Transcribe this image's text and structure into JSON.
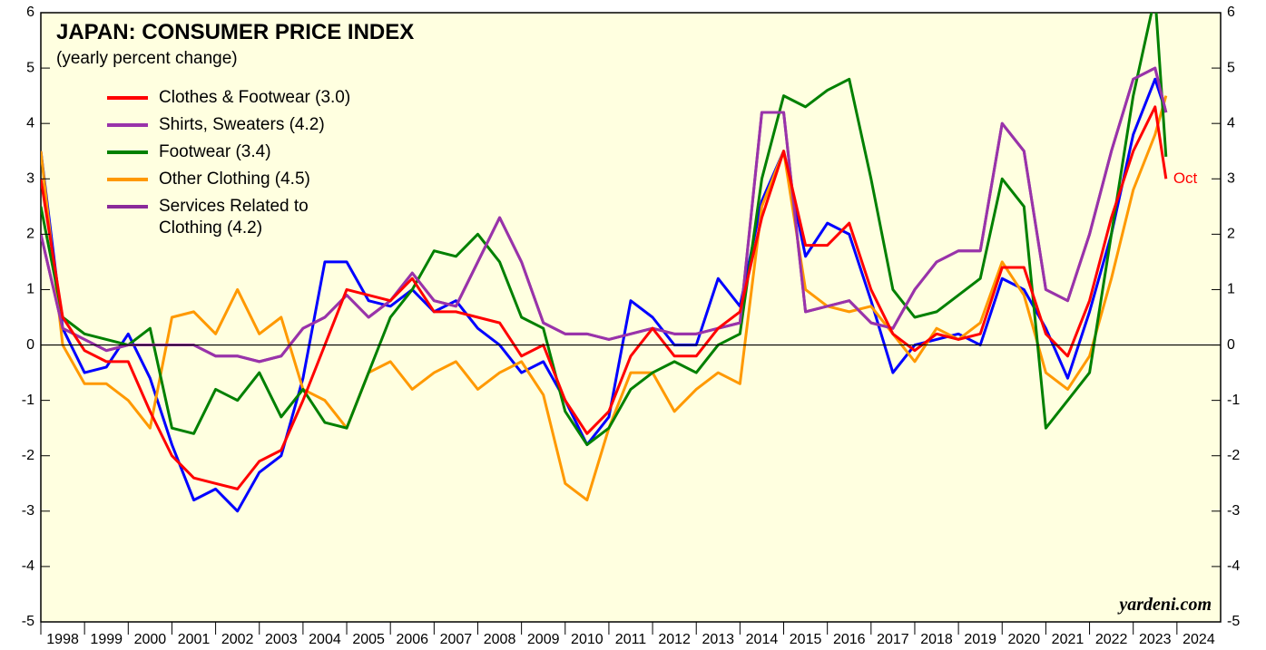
{
  "chart_data": {
    "type": "line",
    "title": "JAPAN: CONSUMER PRICE INDEX",
    "subtitle": "(yearly percent change)",
    "annotations": [
      "Oct",
      "yardeni.com"
    ],
    "x": [
      1998,
      1998.5,
      1999,
      1999.5,
      2000,
      2000.5,
      2001,
      2001.5,
      2002,
      2002.5,
      2003,
      2003.5,
      2004,
      2004.5,
      2005,
      2005.5,
      2006,
      2006.5,
      2007,
      2007.5,
      2008,
      2008.5,
      2009,
      2009.5,
      2010,
      2010.5,
      2011,
      2011.5,
      2012,
      2012.5,
      2013,
      2013.5,
      2014,
      2014.5,
      2015,
      2015.5,
      2016,
      2016.5,
      2017,
      2017.5,
      2018,
      2018.5,
      2019,
      2019.5,
      2020,
      2020.5,
      2021,
      2021.5,
      2022,
      2022.5,
      2023,
      2023.5,
      2023.75
    ],
    "xlim": [
      1998,
      2025
    ],
    "xticks": [
      1998,
      1999,
      2000,
      2001,
      2002,
      2003,
      2004,
      2005,
      2006,
      2007,
      2008,
      2009,
      2010,
      2011,
      2012,
      2013,
      2014,
      2015,
      2016,
      2017,
      2018,
      2019,
      2020,
      2021,
      2022,
      2023,
      2024
    ],
    "ylim": [
      -5,
      6
    ],
    "yticks": [
      -5,
      -4,
      -3,
      -2,
      -1,
      0,
      1,
      2,
      3,
      4,
      5,
      6
    ],
    "series": [
      {
        "color": "#0000ff",
        "values": [
          3.5,
          0.3,
          -0.5,
          -0.4,
          0.2,
          -0.6,
          -1.8,
          -2.8,
          -2.6,
          -3.0,
          -2.3,
          -2.0,
          -0.6,
          1.5,
          1.5,
          0.8,
          0.7,
          1.0,
          0.6,
          0.8,
          0.3,
          0.0,
          -0.5,
          -0.3,
          -1.0,
          -1.8,
          -1.3,
          0.8,
          0.5,
          0.0,
          0.0,
          1.2,
          0.7,
          2.6,
          3.5,
          1.6,
          2.2,
          2.0,
          0.8,
          -0.5,
          0.0,
          0.1,
          0.2,
          0.0,
          1.2,
          1.0,
          0.3,
          -0.6,
          0.6,
          2.0,
          3.8,
          4.8,
          4.2
        ]
      },
      {
        "name": "Services Related to Clothing (4.2)",
        "color": "#8a2a9a",
        "values": [
          2.0,
          0.3,
          0.1,
          -0.1,
          0.0,
          0.0,
          0.0,
          0.0,
          -0.2,
          -0.2,
          -0.3,
          -0.2,
          0.3,
          0.5,
          0.9,
          0.5,
          0.8,
          1.3,
          0.8,
          0.7,
          1.5,
          2.3,
          1.5,
          0.4,
          0.2,
          0.2,
          0.1,
          0.2,
          0.3,
          0.2,
          0.2,
          0.3,
          0.4,
          4.2,
          4.2,
          0.6,
          0.7,
          0.8,
          0.4,
          0.3,
          1.0,
          1.5,
          1.7,
          1.7,
          4.0,
          3.5,
          1.0,
          0.8,
          2.0,
          3.5,
          4.8,
          5.0,
          4.2
        ]
      },
      {
        "name": "Other Clothing (4.5)",
        "color": "#ff9900",
        "values": [
          3.5,
          0.0,
          -0.7,
          -0.7,
          -1.0,
          -1.5,
          0.5,
          0.6,
          0.2,
          1.0,
          0.2,
          0.5,
          -0.8,
          -1.0,
          -1.5,
          -0.5,
          -0.3,
          -0.8,
          -0.5,
          -0.3,
          -0.8,
          -0.5,
          -0.3,
          -0.9,
          -2.5,
          -2.8,
          -1.5,
          -0.5,
          -0.5,
          -1.2,
          -0.8,
          -0.5,
          -0.7,
          2.5,
          3.5,
          1.0,
          0.7,
          0.6,
          0.7,
          0.2,
          -0.3,
          0.3,
          0.1,
          0.4,
          1.5,
          0.9,
          -0.5,
          -0.8,
          -0.2,
          1.2,
          2.8,
          3.8,
          4.5
        ]
      },
      {
        "name": "Footwear (3.4)",
        "color": "#008000",
        "values": [
          2.5,
          0.5,
          0.2,
          0.1,
          0.0,
          0.3,
          -1.5,
          -1.6,
          -0.8,
          -1.0,
          -0.5,
          -1.3,
          -0.8,
          -1.4,
          -1.5,
          -0.5,
          0.5,
          1.0,
          1.7,
          1.6,
          2.0,
          1.5,
          0.5,
          0.3,
          -1.2,
          -1.8,
          -1.5,
          -0.8,
          -0.5,
          -0.3,
          -0.5,
          0.0,
          0.2,
          3.0,
          4.5,
          4.3,
          4.6,
          4.8,
          3.0,
          1.0,
          0.5,
          0.6,
          0.9,
          1.2,
          3.0,
          2.5,
          -1.5,
          -1.0,
          -0.5,
          2.0,
          4.5,
          6.3,
          3.4
        ]
      },
      {
        "name": "Shirts, Sweaters (4.2)",
        "color": "#9933aa",
        "values": [
          2.0,
          0.3,
          0.1,
          -0.1,
          0.0,
          0.0,
          0.0,
          0.0,
          -0.2,
          -0.2,
          -0.3,
          -0.2,
          0.3,
          0.5,
          0.9,
          0.5,
          0.8,
          1.3,
          0.8,
          0.7,
          1.5,
          2.3,
          1.5,
          0.4,
          0.2,
          0.2,
          0.1,
          0.2,
          0.3,
          0.2,
          0.2,
          0.3,
          0.4,
          4.2,
          4.2,
          0.6,
          0.7,
          0.8,
          0.4,
          0.3,
          1.0,
          1.5,
          1.7,
          1.7,
          4.0,
          3.5,
          1.0,
          0.8,
          2.0,
          3.5,
          4.8,
          5.0,
          4.2
        ]
      },
      {
        "name": "Clothes & Footwear (3.0)",
        "color": "#ff0000",
        "values": [
          3.0,
          0.5,
          -0.1,
          -0.3,
          -0.3,
          -1.2,
          -2.0,
          -2.4,
          -2.5,
          -2.6,
          -2.1,
          -1.9,
          -1.0,
          0.0,
          1.0,
          0.9,
          0.8,
          1.2,
          0.6,
          0.6,
          0.5,
          0.4,
          -0.2,
          0.0,
          -1.0,
          -1.6,
          -1.2,
          -0.2,
          0.3,
          -0.2,
          -0.2,
          0.3,
          0.6,
          2.3,
          3.5,
          1.8,
          1.8,
          2.2,
          1.0,
          0.2,
          -0.1,
          0.2,
          0.1,
          0.2,
          1.4,
          1.4,
          0.2,
          -0.2,
          0.8,
          2.3,
          3.5,
          4.3,
          3.0
        ]
      }
    ],
    "legend_order": [
      5,
      4,
      3,
      2,
      1
    ]
  }
}
